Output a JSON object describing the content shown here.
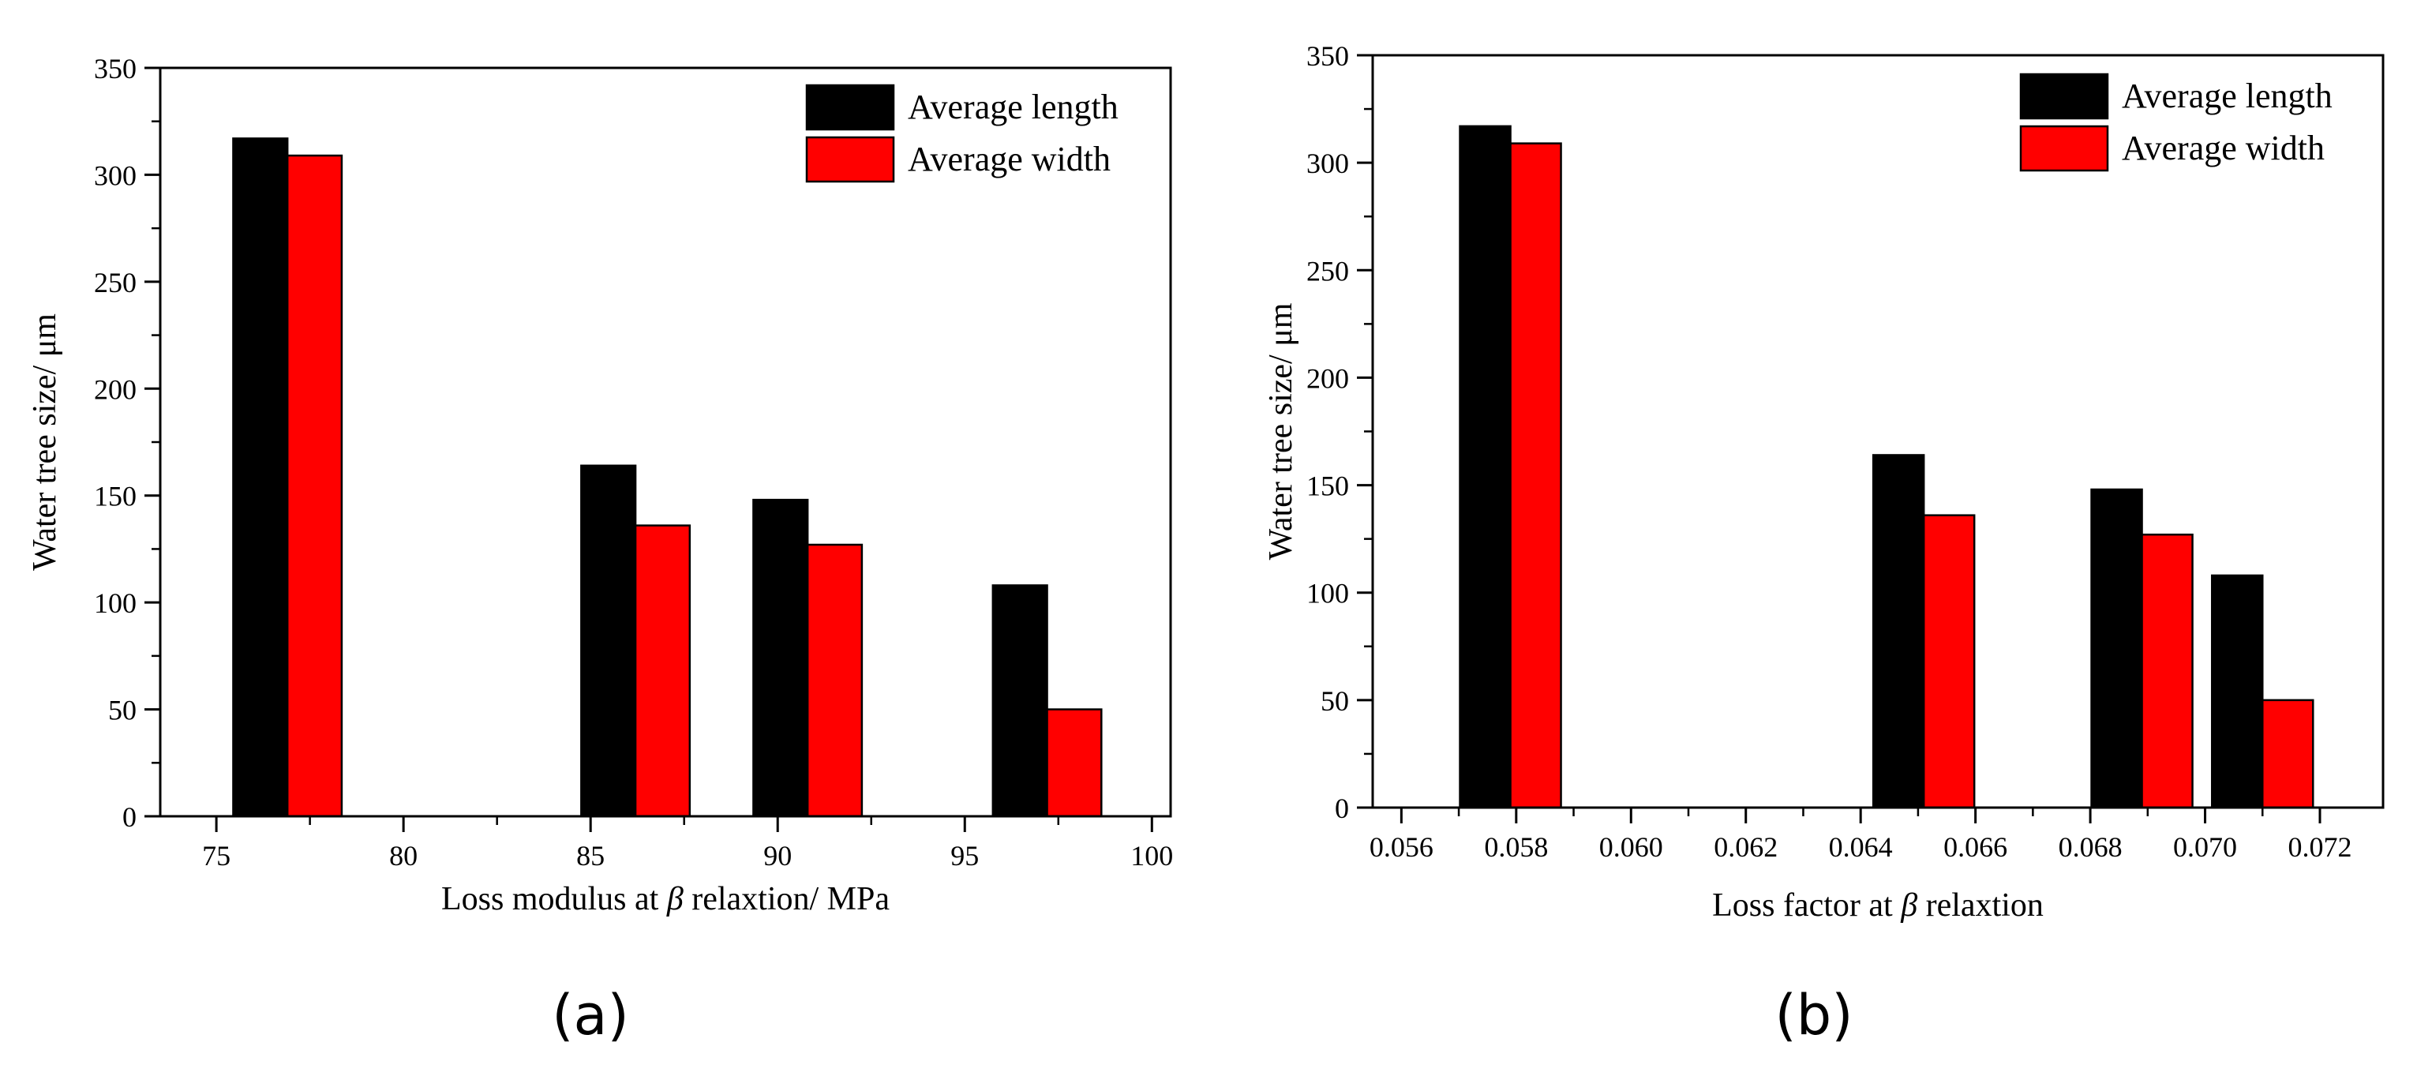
{
  "figure": {
    "panel_labels": [
      "(a)",
      "(b)"
    ]
  },
  "chart_data": [
    {
      "type": "bar",
      "title": "",
      "xlabel_parts": [
        "Loss modulus at ",
        "β",
        " relaxtion/ MPa"
      ],
      "ylabel": "Water tree size/ μm",
      "xlim": [
        73.5,
        100.5
      ],
      "ylim": [
        0,
        350
      ],
      "xticks": [
        75,
        80,
        85,
        90,
        95,
        100
      ],
      "xtick_labels": [
        "75",
        "80",
        "85",
        "90",
        "95",
        "100"
      ],
      "yticks": [
        0,
        50,
        100,
        150,
        200,
        250,
        300,
        350
      ],
      "ytick_labels": [
        "0",
        "50",
        "100",
        "150",
        "200",
        "250",
        "300",
        "350"
      ],
      "x": [
        76.9,
        86.2,
        90.8,
        97.2
      ],
      "bar_width": 1.45,
      "series": [
        {
          "name": "Average length",
          "values": [
            317,
            164,
            148,
            108
          ]
        },
        {
          "name": "Average width",
          "values": [
            309,
            136,
            127,
            50
          ]
        }
      ],
      "colors": [
        "#000000",
        "#ff0000"
      ],
      "legend": "top-right",
      "grid": false
    },
    {
      "type": "bar",
      "title": "",
      "xlabel_parts": [
        "Loss factor at ",
        "β",
        " relaxtion"
      ],
      "ylabel": "Water tree size/ μm",
      "xlim": [
        0.0555,
        0.0731
      ],
      "ylim": [
        0,
        350
      ],
      "xticks": [
        0.056,
        0.058,
        0.06,
        0.062,
        0.064,
        0.066,
        0.068,
        0.07,
        0.072
      ],
      "xtick_labels": [
        "0.056",
        "0.058",
        "0.060",
        "0.062",
        "0.064",
        "0.066",
        "0.068",
        "0.070",
        "0.072"
      ],
      "yticks": [
        0,
        50,
        100,
        150,
        200,
        250,
        300,
        350
      ],
      "ytick_labels": [
        "0",
        "50",
        "100",
        "150",
        "200",
        "250",
        "300",
        "350"
      ],
      "x": [
        0.0579,
        0.0651,
        0.0689,
        0.071
      ],
      "bar_width": 0.00088,
      "series": [
        {
          "name": "Average length",
          "values": [
            317,
            164,
            148,
            108
          ]
        },
        {
          "name": "Average width",
          "values": [
            309,
            136,
            127,
            50
          ]
        }
      ],
      "colors": [
        "#000000",
        "#ff0000"
      ],
      "legend": "top-right",
      "grid": false
    }
  ]
}
